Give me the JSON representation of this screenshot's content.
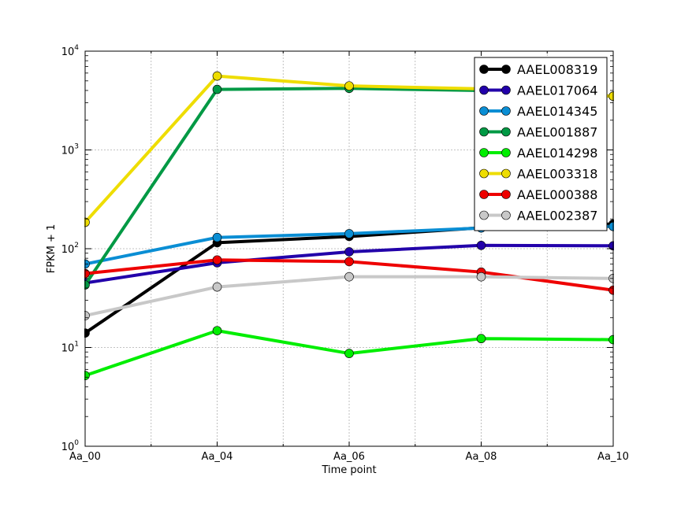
{
  "chart_data": {
    "type": "line",
    "title": "",
    "xlabel": "Time point",
    "ylabel": "FPKM + 1",
    "yscale": "log",
    "ylim": [
      1,
      10000
    ],
    "categories": [
      "Aa_00",
      "Aa_04",
      "Aa_06",
      "Aa_08",
      "Aa_10"
    ],
    "yticks": [
      {
        "value": 1,
        "base": "10",
        "exp": "0"
      },
      {
        "value": 10,
        "base": "10",
        "exp": "1"
      },
      {
        "value": 100,
        "base": "10",
        "exp": "2"
      },
      {
        "value": 1000,
        "base": "10",
        "exp": "3"
      },
      {
        "value": 10000,
        "base": "10",
        "exp": "4"
      }
    ],
    "grid": true,
    "legend_position": "top-right",
    "series": [
      {
        "name": "AAEL008319",
        "color": "#000000",
        "values": [
          14,
          115,
          133,
          163,
          178
        ]
      },
      {
        "name": "AAEL017064",
        "color": "#2200aa",
        "values": [
          45,
          72,
          93,
          108,
          107
        ]
      },
      {
        "name": "AAEL014345",
        "color": "#0a8ed4",
        "values": [
          70,
          130,
          142,
          162,
          168
        ]
      },
      {
        "name": "AAEL001887",
        "color": "#009944",
        "values": [
          43,
          4100,
          4200,
          4000,
          3500
        ]
      },
      {
        "name": "AAEL014298",
        "color": "#00ee00",
        "values": [
          5.2,
          14.8,
          8.7,
          12.3,
          12.0
        ]
      },
      {
        "name": "AAEL003318",
        "color": "#eedd00",
        "values": [
          185,
          5600,
          4450,
          4150,
          3500
        ]
      },
      {
        "name": "AAEL000388",
        "color": "#ee0000",
        "values": [
          56,
          77,
          74,
          58,
          38
        ]
      },
      {
        "name": "AAEL002387",
        "color": "#c8c8c8",
        "values": [
          21,
          41,
          52,
          52,
          50
        ]
      }
    ]
  }
}
